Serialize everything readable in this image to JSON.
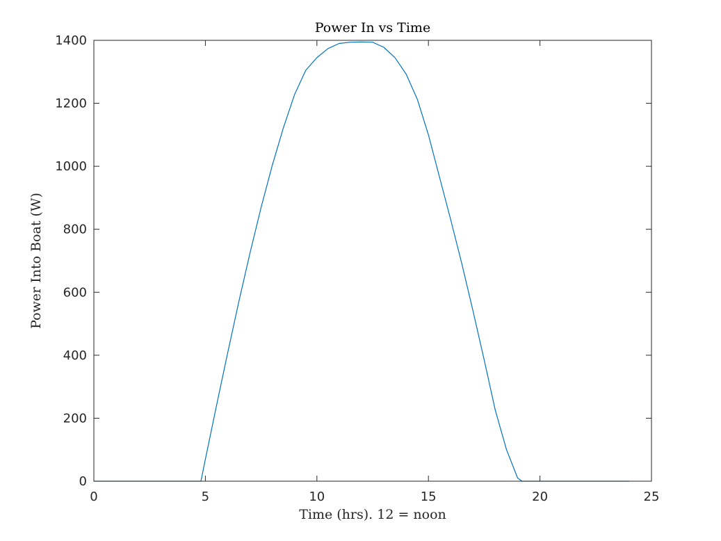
{
  "chart_data": {
    "type": "line",
    "title": "Power In vs Time",
    "xlabel": "Time (hrs). 12 = noon",
    "ylabel": "Power Into Boat (W)",
    "xlim": [
      0,
      25
    ],
    "ylim": [
      0,
      1400
    ],
    "xticks": [
      0,
      5,
      10,
      15,
      20,
      25
    ],
    "yticks": [
      0,
      200,
      400,
      600,
      800,
      1000,
      1200,
      1400
    ],
    "grid": false,
    "box": true,
    "series": [
      {
        "color": "#0072bd",
        "x": [
          0,
          1,
          2,
          3,
          4,
          4.8,
          5,
          5.5,
          6,
          6.5,
          7,
          7.5,
          8,
          8.5,
          9,
          9.5,
          10,
          10.5,
          11,
          11.5,
          12,
          12.5,
          13,
          13.5,
          14,
          14.5,
          15,
          15.5,
          16,
          16.5,
          17,
          17.5,
          18,
          18.5,
          19,
          19.2,
          20,
          21,
          22,
          23,
          24
        ],
        "y": [
          0,
          0,
          0,
          0,
          0,
          0,
          70,
          240,
          408,
          570,
          725,
          870,
          1003,
          1123,
          1228,
          1305,
          1345,
          1374,
          1390,
          1394,
          1395,
          1394,
          1378,
          1345,
          1293,
          1213,
          1100,
          965,
          830,
          690,
          540,
          385,
          225,
          100,
          10,
          0,
          0,
          0,
          0,
          0,
          0
        ]
      }
    ]
  }
}
